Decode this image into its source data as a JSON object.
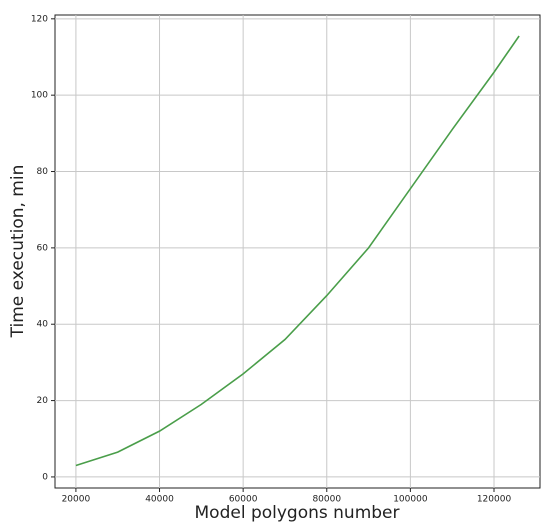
{
  "chart_data": {
    "type": "line",
    "xlabel": "Model polygons number",
    "ylabel": "Time execution, min",
    "x": [
      20000,
      30000,
      40000,
      50000,
      60000,
      70000,
      80000,
      90000,
      100000,
      110000,
      120000,
      126000
    ],
    "series": [
      {
        "color": "#4a9e4a",
        "values": [
          3,
          6.5,
          12,
          19,
          27,
          36,
          47.5,
          60,
          75.5,
          91,
          106,
          115.5
        ]
      }
    ],
    "xlim": [
      15000,
      131000
    ],
    "ylim": [
      -2.9,
      121
    ],
    "xticks": [
      20000,
      40000,
      60000,
      80000,
      100000,
      120000
    ],
    "yticks": [
      0,
      20,
      40,
      60,
      80,
      100,
      120
    ],
    "grid": true
  }
}
